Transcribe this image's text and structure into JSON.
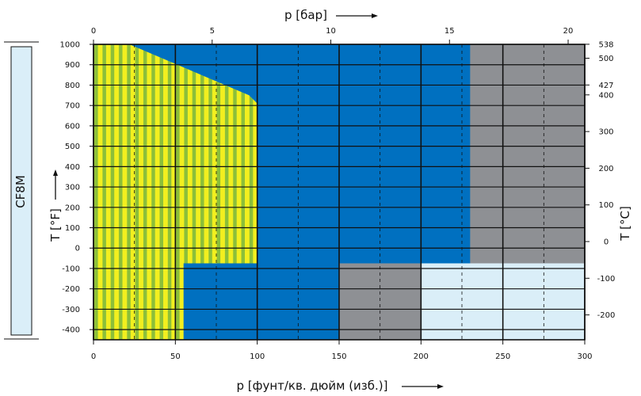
{
  "colors": {
    "blue": "#0070c0",
    "gray": "#8e9094",
    "yellow": "#f2ef1f",
    "green": "#8bbf3a",
    "light_blue": "#daeef8",
    "line": "#111111"
  },
  "chart_data": {
    "type": "area",
    "material_label": "CF8M",
    "axes": {
      "bottom": {
        "label": "p [фунт/кв. дюйм (изб.)]",
        "range": [
          0,
          300
        ],
        "ticks": [
          "0",
          "50",
          "100",
          "150",
          "200",
          "250",
          "300"
        ]
      },
      "top": {
        "label": "p [бар]",
        "range": [
          0,
          20.7
        ],
        "ticks": [
          "0",
          "5",
          "10",
          "15",
          "20"
        ]
      },
      "left": {
        "label": "T [°F]",
        "range": [
          -450,
          1000
        ],
        "ticks": [
          "1000",
          "900",
          "800",
          "700",
          "600",
          "500",
          "400",
          "300",
          "200",
          "100",
          "0",
          "-100",
          "-200",
          "-300",
          "-400"
        ]
      },
      "right": {
        "label": "T [°C]",
        "ticks": [
          "538",
          "500",
          "427",
          "400",
          "300",
          "200",
          "100",
          "0",
          "-100",
          "-200"
        ]
      }
    },
    "regions": [
      {
        "color": "blue",
        "polygon": [
          [
            0,
            -450
          ],
          [
            300,
            -450
          ],
          [
            300,
            1000
          ],
          [
            0,
            1000
          ]
        ]
      },
      {
        "color": "gray",
        "polygon": [
          [
            230,
            -75
          ],
          [
            300,
            -75
          ],
          [
            300,
            1000
          ],
          [
            230,
            1000
          ]
        ]
      },
      {
        "color": "gray",
        "polygon": [
          [
            150,
            -450
          ],
          [
            200,
            -450
          ],
          [
            200,
            -75
          ],
          [
            150,
            -75
          ]
        ]
      },
      {
        "color": "light_blue",
        "polygon": [
          [
            200,
            -450
          ],
          [
            300,
            -450
          ],
          [
            300,
            -75
          ],
          [
            200,
            -75
          ]
        ]
      },
      {
        "color": "striped_yellow_green",
        "polygon": [
          [
            0,
            -450
          ],
          [
            55,
            -450
          ],
          [
            55,
            -75
          ],
          [
            100,
            -75
          ],
          [
            100,
            710
          ],
          [
            95,
            750
          ],
          [
            22,
            1000
          ],
          [
            0,
            1000
          ]
        ]
      }
    ],
    "grid": true
  }
}
